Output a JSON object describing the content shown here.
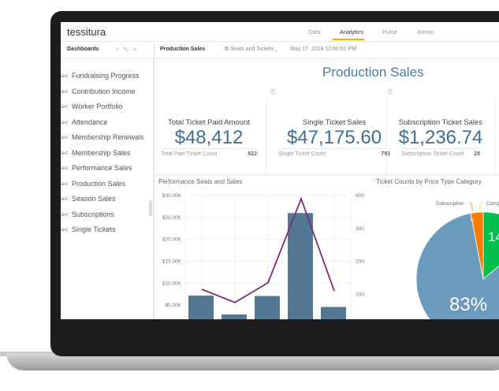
{
  "app": {
    "logo": "tessitura",
    "nav": [
      {
        "label": "Data"
      },
      {
        "label": "Analytics",
        "active": true
      },
      {
        "label": "Pulse"
      },
      {
        "label": "Admin"
      }
    ],
    "accent": "#f0b400"
  },
  "sidebar": {
    "title": "Dashboards",
    "icons": [
      "search-icon",
      "edit-icon",
      "plus-icon"
    ],
    "items": [
      {
        "label": "Fundraising Progress"
      },
      {
        "label": "Contribution Income"
      },
      {
        "label": "Worker Portfolio"
      },
      {
        "label": "Attendance"
      },
      {
        "label": "Membership Renewals"
      },
      {
        "label": "Membership Sales"
      },
      {
        "label": "Performance Sales"
      },
      {
        "label": "Production Sales"
      },
      {
        "label": "Season Sales"
      },
      {
        "label": "Subscriptions"
      },
      {
        "label": "Single Tickets"
      }
    ]
  },
  "header": {
    "dashboard": "Production Sales",
    "filter": "Seats and Tickets",
    "timestamp": "May 17, 2018 12:00:51 PM"
  },
  "main": {
    "title": "Production Sales",
    "kpis": [
      {
        "title": "Total Ticket Paid Amount",
        "value": "$48,412",
        "foot_label": "Total Paid Ticket Count",
        "foot_value": "822"
      },
      {
        "title": "Single Ticket Sales",
        "value": "$47,175.60",
        "foot_label": "Single Ticket Count",
        "foot_value": "793"
      },
      {
        "title": "Subscription Ticket Sales",
        "value": "$1,236.74",
        "foot_label": "Subscription Ticket Count",
        "foot_value": "28"
      }
    ]
  },
  "chart_data": [
    {
      "type": "bar",
      "title": "Performance Seats and Sales",
      "y_ticks": [
        "$5.00K",
        "$10.00K",
        "$15.00K",
        "$20.00K",
        "$25.00K",
        "$30.00K"
      ],
      "y2_ticks": [
        "100",
        "200",
        "300",
        "400"
      ],
      "ylim": [
        0,
        30000
      ],
      "y2lim": [
        0,
        400
      ],
      "grid": true,
      "series": [
        {
          "type": "bar",
          "values": [
            7200,
            2900,
            7100,
            26000,
            4600
          ],
          "color": "#527894"
        },
        {
          "type": "line",
          "values": [
            115,
            75,
            135,
            390,
            110
          ],
          "color": "#7b2d7b"
        }
      ]
    },
    {
      "type": "pie",
      "title": "Ticket Counts by Price Type Category",
      "slices": [
        {
          "name": "",
          "value": 83,
          "label": "83%",
          "color": "#6a9bbd"
        },
        {
          "name": "Subscription",
          "value": 3,
          "label": "3%",
          "color": "#ff7a00"
        },
        {
          "name": "Comp",
          "value": 14,
          "label": "14",
          "color": "#00c04b"
        }
      ]
    }
  ]
}
